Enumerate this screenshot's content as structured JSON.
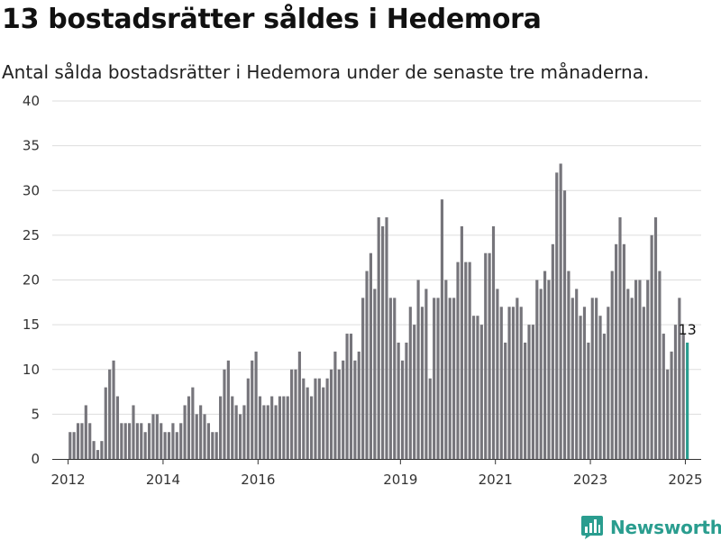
{
  "header": {
    "title": "13 bostadsrätter såldes i Hedemora",
    "subtitle": "Antal sålda bostadsrätter i Hedemora under de senaste tre månaderna."
  },
  "brand": {
    "name": "Newsworthy",
    "color": "#2a9d8f"
  },
  "chart_data": {
    "type": "bar",
    "title": "13 bostadsrätter såldes i Hedemora",
    "subtitle": "Antal sålda bostadsrätter i Hedemora under de senaste tre månaderna.",
    "xlabel": "",
    "ylabel": "",
    "ylim": [
      0,
      40
    ],
    "yticks": [
      0,
      5,
      10,
      15,
      20,
      25,
      30,
      35,
      40
    ],
    "xticks": [
      "2012",
      "2014",
      "2016",
      "2019",
      "2021",
      "2023",
      "2025"
    ],
    "x_range": [
      "2011-09",
      "2025-05"
    ],
    "grid": true,
    "bar_color": "#76757b",
    "highlight_color": "#2a9d8f",
    "highlight_label": "13",
    "series": [
      {
        "start": "2012-01",
        "step": "month",
        "values": [
          3,
          3,
          4,
          4,
          6,
          4,
          2,
          1,
          2,
          8,
          10,
          11,
          7,
          4,
          4,
          4,
          6,
          4,
          4,
          3,
          4,
          5,
          5,
          4,
          3,
          3,
          4,
          3,
          4,
          6,
          7,
          8,
          5,
          6,
          5,
          4,
          3,
          3,
          7,
          10,
          11,
          7,
          6,
          5,
          6,
          9,
          11,
          12,
          7,
          6,
          6,
          7,
          6,
          7,
          7,
          7,
          10,
          10,
          12,
          9,
          8,
          7,
          9,
          9,
          8,
          9,
          10,
          12,
          10,
          11,
          14,
          14,
          11,
          12,
          18,
          21,
          23,
          19,
          27,
          26,
          27,
          18,
          18,
          13,
          11,
          13,
          17,
          15,
          20,
          17,
          19,
          9,
          18,
          18,
          29,
          20,
          18,
          18,
          22,
          26,
          22,
          22,
          16,
          16,
          15,
          23,
          23,
          26,
          19,
          17,
          13,
          17,
          17,
          18,
          17,
          13,
          15,
          15,
          20,
          19,
          21,
          20,
          24,
          32,
          33,
          30,
          21,
          18,
          19,
          16,
          17,
          13,
          18,
          18,
          16,
          14,
          17,
          21,
          24,
          27,
          24,
          19,
          18,
          20,
          20,
          17,
          20,
          25,
          27,
          21,
          14,
          10,
          12,
          15,
          18,
          14,
          13
        ]
      }
    ]
  }
}
